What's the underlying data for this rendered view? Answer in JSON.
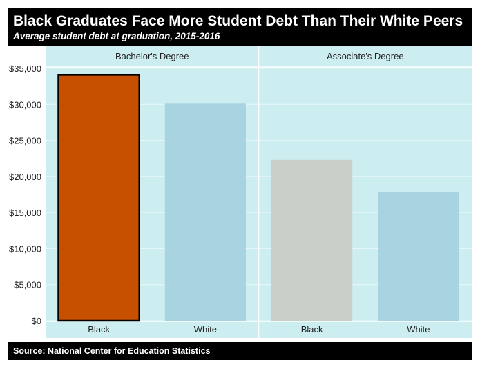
{
  "header": {
    "title": "Black Graduates Face More Student Debt Than Their White Peers",
    "subtitle": "Average student debt at graduation, 2015-2016"
  },
  "footer": {
    "source": "Source: National Center for Education Statistics"
  },
  "colors": {
    "background": "#cdeef0",
    "black_bachelor": "#c75000",
    "black_associate": "#c8cfc6",
    "white": "#a8d4e2",
    "gridline": "#e8f8f9"
  },
  "chart_data": {
    "type": "bar",
    "title": "Black Graduates Face More Student Debt Than Their White Peers",
    "subtitle": "Average student debt at graduation, 2015-2016",
    "xlabel": "",
    "ylabel": "",
    "ylim": [
      0,
      35000
    ],
    "yticks": [
      0,
      5000,
      10000,
      15000,
      20000,
      25000,
      30000,
      35000
    ],
    "ytick_labels": [
      "$0",
      "$5,000",
      "$10,000",
      "$15,000",
      "$20,000",
      "$25,000",
      "$30,000",
      "$35,000"
    ],
    "grid": true,
    "panels": [
      {
        "label": "Bachelor's Degree",
        "categories": [
          "Black",
          "White"
        ],
        "values": [
          34100,
          30100
        ],
        "colors": [
          "#c75000",
          "#a8d4e2"
        ],
        "highlighted": [
          true,
          false
        ]
      },
      {
        "label": "Associate's Degree",
        "categories": [
          "Black",
          "White"
        ],
        "values": [
          22300,
          17800
        ],
        "colors": [
          "#c8cfc6",
          "#a8d4e2"
        ],
        "highlighted": [
          false,
          false
        ]
      }
    ]
  }
}
